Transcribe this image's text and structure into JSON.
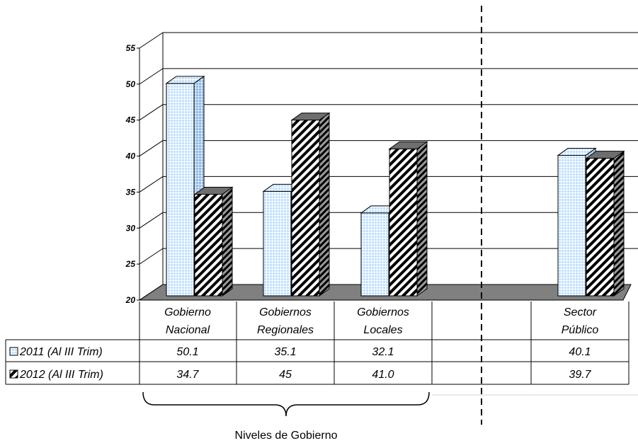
{
  "colors": {
    "series_2011": "#bfe0ff",
    "series_2012_stripe": "#000000",
    "floor": "#808080"
  },
  "chart_data": {
    "type": "bar",
    "categories": [
      {
        "line1": "Gobierno",
        "line2": "Nacional"
      },
      {
        "line1": "Gobiernos",
        "line2": "Regionales"
      },
      {
        "line1": "Gobiernos",
        "line2": "Locales"
      },
      {
        "line1": "",
        "line2": ""
      },
      {
        "line1": "Sector",
        "line2": "Público"
      }
    ],
    "series": [
      {
        "name": "2011 (Al III Trim)",
        "values": [
          50.1,
          35.1,
          32.1,
          null,
          40.1
        ],
        "labels": [
          "50.1",
          "35.1",
          "32.1",
          "",
          "40.1"
        ]
      },
      {
        "name": "2012 (Al III Trim)",
        "values": [
          34.7,
          45,
          41.0,
          null,
          39.7
        ],
        "labels": [
          "34.7",
          "45",
          "41.0",
          "",
          "39.7"
        ]
      }
    ],
    "ylim": [
      20,
      55
    ],
    "yticks": [
      "20",
      "25",
      "30",
      "35",
      "40",
      "45",
      "50",
      "55"
    ],
    "grid": true,
    "legend": "data-table",
    "group_label": "Niveles de Gobierno"
  }
}
